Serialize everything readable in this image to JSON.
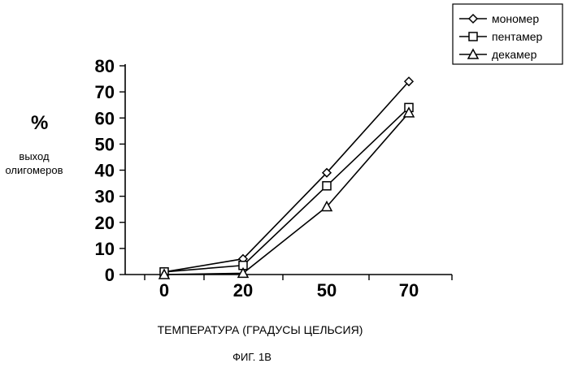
{
  "chart_data": {
    "type": "line",
    "title": "",
    "x_categories": [
      "0",
      "20",
      "50",
      "70"
    ],
    "y_ticks": [
      "0",
      "10",
      "20",
      "30",
      "40",
      "50",
      "60",
      "70",
      "80"
    ],
    "ylim": [
      0,
      80
    ],
    "ylabel_unit": "%",
    "ylabel_line1": "выход",
    "ylabel_line2": "олигомеров",
    "xlabel": "ТЕМПЕРАТУРА (ГРАДУСЫ  ЦЕЛЬСИЯ)",
    "legend_position": "top-right",
    "grid": false,
    "series": [
      {
        "name": "мономер",
        "marker": "diamond",
        "values": [
          1,
          6,
          39,
          74
        ]
      },
      {
        "name": "пентамер",
        "marker": "square",
        "values": [
          1,
          3.5,
          34,
          64
        ]
      },
      {
        "name": "декамер",
        "marker": "triangle",
        "values": [
          0,
          0.5,
          26,
          62
        ]
      }
    ]
  },
  "caption": "ФИГ. 1В"
}
